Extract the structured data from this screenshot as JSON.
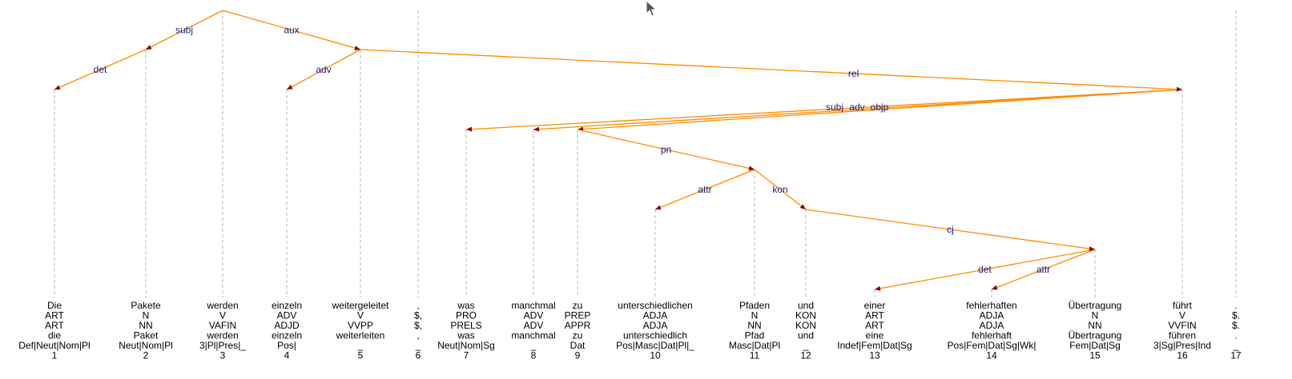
{
  "tokens": [
    {
      "id": 1,
      "form": "Die",
      "cpos": "ART",
      "pos": "ART",
      "lemma": "die",
      "feats": "Def|Neut|Nom|Pl",
      "idx": "1",
      "head": 2,
      "deprel": "det"
    },
    {
      "id": 2,
      "form": "Pakete",
      "cpos": "N",
      "pos": "NN",
      "lemma": "Paket",
      "feats": "Neut|Nom|Pl",
      "idx": "2",
      "head": 3,
      "deprel": "subj"
    },
    {
      "id": 3,
      "form": "werden",
      "cpos": "V",
      "pos": "VAFIN",
      "lemma": "werden",
      "feats": "3|Pl|Pres|_",
      "idx": "3",
      "head": 0,
      "deprel": ""
    },
    {
      "id": 4,
      "form": "einzeln",
      "cpos": "ADV",
      "pos": "ADJD",
      "lemma": "einzeln",
      "feats": "Pos|",
      "idx": "4",
      "head": 5,
      "deprel": "adv"
    },
    {
      "id": 5,
      "form": "weitergeleitet",
      "cpos": "V",
      "pos": "VVPP",
      "lemma": "weiterleiten",
      "feats": "_",
      "idx": "5",
      "head": 3,
      "deprel": "aux"
    },
    {
      "id": 6,
      "form": ",",
      "cpos": "$,",
      "pos": "$,",
      "lemma": ",",
      "feats": "_",
      "idx": "6",
      "head": 0,
      "deprel": ""
    },
    {
      "id": 7,
      "form": "was",
      "cpos": "PRO",
      "pos": "PRELS",
      "lemma": "was",
      "feats": "Neut|Nom|Sg",
      "idx": "7",
      "head": 16,
      "deprel": "subj"
    },
    {
      "id": 8,
      "form": "manchmal",
      "cpos": "ADV",
      "pos": "ADV",
      "lemma": "manchmal",
      "feats": "_",
      "idx": "8",
      "head": 16,
      "deprel": "adv"
    },
    {
      "id": 9,
      "form": "zu",
      "cpos": "PREP",
      "pos": "APPR",
      "lemma": "zu",
      "feats": "Dat",
      "idx": "9",
      "head": 16,
      "deprel": "objp"
    },
    {
      "id": 10,
      "form": "unterschiedlichen",
      "cpos": "ADJA",
      "pos": "ADJA",
      "lemma": "unterschiedlich",
      "feats": "Pos|Masc|Dat|Pl|_",
      "idx": "10",
      "head": 11,
      "deprel": "attr"
    },
    {
      "id": 11,
      "form": "Pfaden",
      "cpos": "N",
      "pos": "NN",
      "lemma": "Pfad",
      "feats": "Masc|Dat|Pl",
      "idx": "11",
      "head": 9,
      "deprel": "pn"
    },
    {
      "id": 12,
      "form": "und",
      "cpos": "KON",
      "pos": "KON",
      "lemma": "und",
      "feats": "_",
      "idx": "12",
      "head": 11,
      "deprel": "kon"
    },
    {
      "id": 13,
      "form": "einer",
      "cpos": "ART",
      "pos": "ART",
      "lemma": "eine",
      "feats": "Indef|Fem|Dat|Sg",
      "idx": "13",
      "head": 15,
      "deprel": "det"
    },
    {
      "id": 14,
      "form": "fehlerhaften",
      "cpos": "ADJA",
      "pos": "ADJA",
      "lemma": "fehlerhaft",
      "feats": "Pos|Fem|Dat|Sg|Wk|",
      "idx": "14",
      "head": 15,
      "deprel": "attr"
    },
    {
      "id": 15,
      "form": "Übertragung",
      "cpos": "N",
      "pos": "NN",
      "lemma": "Übertragung",
      "feats": "Fem|Dat|Sg",
      "idx": "15",
      "head": 12,
      "deprel": "cj"
    },
    {
      "id": 16,
      "form": "führt",
      "cpos": "V",
      "pos": "VVFIN",
      "lemma": "führen",
      "feats": "3|Sg|Pres|Ind",
      "idx": "16",
      "head": 5,
      "deprel": "rel"
    },
    {
      "id": 17,
      "form": ".",
      "cpos": "$.",
      "pos": "$.",
      "lemma": ".",
      "feats": "_",
      "idx": "17",
      "head": 0,
      "deprel": ""
    }
  ],
  "colors": {
    "edge": "#ff8c00",
    "arrowhead": "#8b0000",
    "edge_label": "#1a1a8c",
    "guide": "#b4b4b4",
    "token_text": "#000000"
  },
  "icons": {
    "cursor": "mouse-pointer-icon"
  }
}
